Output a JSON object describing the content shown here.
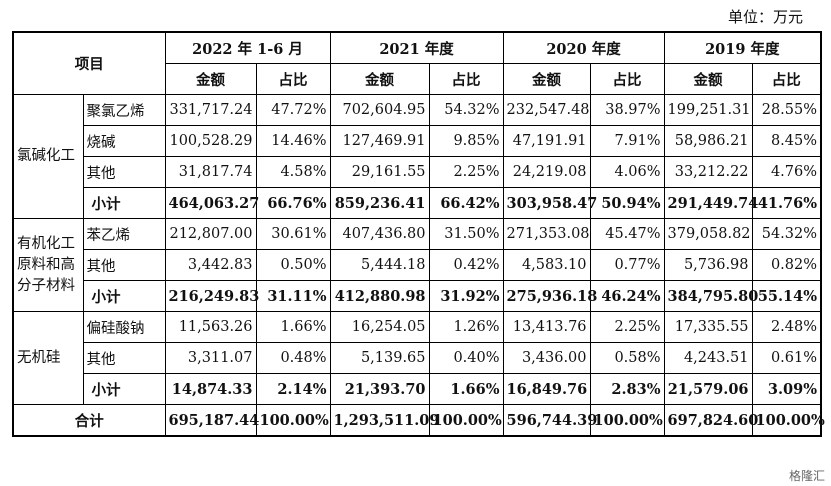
{
  "unit_label": "单位：万元",
  "header": {
    "item_label": "项目",
    "periods": [
      "2022 年 1-6 月",
      "2021 年度",
      "2020 年度",
      "2019 年度"
    ],
    "amount_label": "金额",
    "ratio_label": "占比"
  },
  "groups": [
    {
      "name": "氯碱化工",
      "rows": [
        {
          "item": "聚氯乙烯",
          "values": [
            "331,717.24",
            "47.72%",
            "702,604.95",
            "54.32%",
            "232,547.48",
            "38.97%",
            "199,251.31",
            "28.55%"
          ]
        },
        {
          "item": "烧碱",
          "values": [
            "100,528.29",
            "14.46%",
            "127,469.91",
            "9.85%",
            "47,191.91",
            "7.91%",
            "58,986.21",
            "8.45%"
          ]
        },
        {
          "item": "其他",
          "values": [
            "31,817.74",
            "4.58%",
            "29,161.55",
            "2.25%",
            "24,219.08",
            "4.06%",
            "33,212.22",
            "4.76%"
          ]
        },
        {
          "item": "小计",
          "subtotal": true,
          "values": [
            "464,063.27",
            "66.76%",
            "859,236.41",
            "66.42%",
            "303,958.47",
            "50.94%",
            "291,449.74",
            "41.76%"
          ]
        }
      ]
    },
    {
      "name": "有机化工原料和高分子材料",
      "rows": [
        {
          "item": "苯乙烯",
          "values": [
            "212,807.00",
            "30.61%",
            "407,436.80",
            "31.50%",
            "271,353.08",
            "45.47%",
            "379,058.82",
            "54.32%"
          ]
        },
        {
          "item": "其他",
          "values": [
            "3,442.83",
            "0.50%",
            "5,444.18",
            "0.42%",
            "4,583.10",
            "0.77%",
            "5,736.98",
            "0.82%"
          ]
        },
        {
          "item": "小计",
          "subtotal": true,
          "values": [
            "216,249.83",
            "31.11%",
            "412,880.98",
            "31.92%",
            "275,936.18",
            "46.24%",
            "384,795.80",
            "55.14%"
          ]
        }
      ]
    },
    {
      "name": "无机硅",
      "rows": [
        {
          "item": "偏硅酸钠",
          "values": [
            "11,563.26",
            "1.66%",
            "16,254.05",
            "1.26%",
            "13,413.76",
            "2.25%",
            "17,335.55",
            "2.48%"
          ]
        },
        {
          "item": "其他",
          "values": [
            "3,311.07",
            "0.48%",
            "5,139.65",
            "0.40%",
            "3,436.00",
            "0.58%",
            "4,243.51",
            "0.61%"
          ]
        },
        {
          "item": "小计",
          "subtotal": true,
          "values": [
            "14,874.33",
            "2.14%",
            "21,393.70",
            "1.66%",
            "16,849.76",
            "2.83%",
            "21,579.06",
            "3.09%"
          ]
        }
      ]
    }
  ],
  "total": {
    "label": "合计",
    "values": [
      "695,187.44",
      "100.00%",
      "1,293,511.09",
      "100.00%",
      "596,744.39",
      "100.00%",
      "697,824.60",
      "100.00%"
    ]
  },
  "watermark_text": "格隆汇"
}
